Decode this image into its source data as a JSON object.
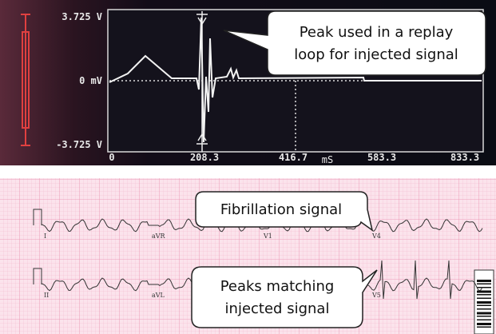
{
  "scope": {
    "y_labels": [
      "3.725 V",
      "0 mV",
      "-3.725 V"
    ],
    "x_labels": [
      "0",
      "208.3",
      "416.7",
      "583.3",
      "833.3"
    ],
    "x_unit": "mS"
  },
  "callouts": [
    {
      "lines": [
        "Peak used in a replay",
        "loop for injected signal"
      ]
    },
    {
      "lines": [
        "Fibrillation signal"
      ]
    },
    {
      "lines": [
        "Peaks matching",
        "injected signal"
      ]
    }
  ],
  "ecg": {
    "lead_labels": [
      "I",
      "aVR",
      "V1",
      "V4",
      "II",
      "aVL",
      "V5"
    ]
  }
}
